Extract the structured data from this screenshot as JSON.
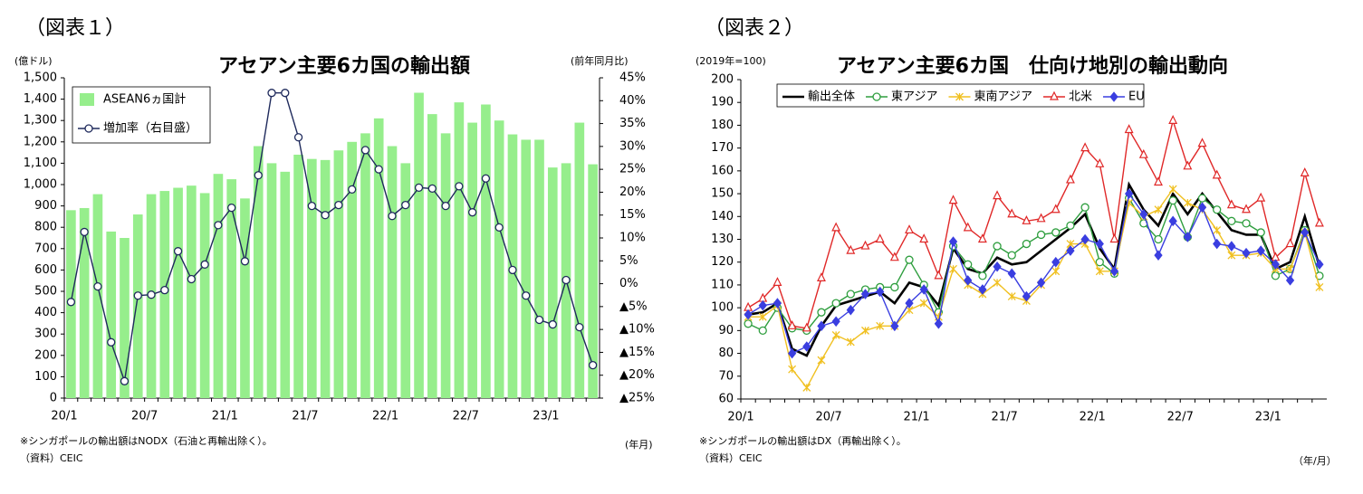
{
  "chart_data": [
    {
      "type": "bar",
      "figure_label": "（図表１）",
      "title": "アセアン主要6カ国の輸出額",
      "y_label": "(億ドル)",
      "y2_label": "(前年同月比)",
      "x_label": "(年月)",
      "note": "※シンガポールの輸出額はNODX（石油と再輸出除く）。",
      "source": "（資料）CEIC",
      "categories": [
        "20/1",
        null,
        null,
        null,
        null,
        null,
        "20/7",
        null,
        null,
        null,
        null,
        null,
        "21/1",
        null,
        null,
        null,
        null,
        null,
        "21/7",
        null,
        null,
        null,
        null,
        null,
        "22/1",
        null,
        null,
        null,
        null,
        null,
        "22/7",
        null,
        null,
        null,
        null,
        null,
        "23/1",
        null,
        null,
        null
      ],
      "series": [
        {
          "name": "ASEAN6ヵ国計",
          "type": "bar",
          "color": "#96ee8c",
          "values": [
            880,
            890,
            955,
            780,
            750,
            860,
            955,
            970,
            985,
            995,
            960,
            1050,
            1025,
            935,
            1180,
            1100,
            1060,
            1140,
            1120,
            1115,
            1160,
            1200,
            1240,
            1310,
            1180,
            1100,
            1430,
            1330,
            1240,
            1385,
            1290,
            1375,
            1300,
            1235,
            1210,
            1210,
            1080,
            1100,
            1290,
            1095
          ]
        },
        {
          "name": "増加率（右目盛）",
          "type": "line",
          "axis": "y2",
          "color": "#1f2a5c",
          "marker": "circle",
          "values": [
            -4,
            11.3,
            -0.6,
            -12.8,
            -21.3,
            -2.6,
            -2.4,
            -1.4,
            7.1,
            1,
            4.2,
            12.8,
            16.6,
            4.9,
            23.7,
            41.7,
            41.7,
            32,
            17,
            15,
            17.2,
            20.6,
            29.2,
            25,
            14.8,
            17.2,
            21,
            20.8,
            17,
            21.3,
            15.6,
            23,
            12.3,
            3,
            -2.6,
            -7.9,
            -8.9,
            0.8,
            -9.5,
            -17.8
          ]
        }
      ],
      "ylim": [
        0,
        1500
      ],
      "yticks": [
        0,
        100,
        200,
        300,
        400,
        500,
        600,
        700,
        800,
        900,
        {
          "value": 1000,
          "label": "1,000"
        },
        {
          "value": 1100,
          "label": "1,100"
        },
        {
          "value": 1200,
          "label": "1,200"
        },
        {
          "value": 1300,
          "label": "1,300"
        },
        {
          "value": 1400,
          "label": "1,400"
        },
        {
          "value": 1500,
          "label": "1,500"
        }
      ],
      "y2lim": [
        -25,
        45
      ],
      "y2ticks": [
        {
          "value": -25,
          "label": "▲25%"
        },
        {
          "value": -20,
          "label": "▲20%"
        },
        {
          "value": -15,
          "label": "▲15%"
        },
        {
          "value": -10,
          "label": "▲10%"
        },
        {
          "value": -5,
          "label": "▲5%"
        },
        {
          "value": 0,
          "label": "0%"
        },
        {
          "value": 5,
          "label": "5%"
        },
        {
          "value": 10,
          "label": "10%"
        },
        {
          "value": 15,
          "label": "15%"
        },
        {
          "value": 20,
          "label": "20%"
        },
        {
          "value": 25,
          "label": "25%"
        },
        {
          "value": 30,
          "label": "30%"
        },
        {
          "value": 35,
          "label": "35%"
        },
        {
          "value": 40,
          "label": "40%"
        },
        {
          "value": 45,
          "label": "45%"
        }
      ],
      "grid": false,
      "legend": "vertical"
    },
    {
      "type": "line",
      "figure_label": "（図表２）",
      "title": "アセアン主要6カ国　仕向け地別の輸出動向",
      "y_label": "(2019年=100)",
      "x_label": "（年/月）",
      "note": "※シンガポールの輸出額はDX（再輸出除く）。",
      "source": "（資料）CEIC",
      "categories": [
        "20/1",
        null,
        null,
        null,
        null,
        null,
        "20/7",
        null,
        null,
        null,
        null,
        null,
        "21/1",
        null,
        null,
        null,
        null,
        null,
        "21/7",
        null,
        null,
        null,
        null,
        null,
        "22/1",
        null,
        null,
        null,
        null,
        null,
        "22/7",
        null,
        null,
        null,
        null,
        null,
        "23/1",
        null,
        null,
        null
      ],
      "series": [
        {
          "name": "輸出全体",
          "color": "#000000",
          "marker": "none",
          "values": [
            97,
            98,
            102,
            82,
            79,
            92,
            101,
            103,
            105,
            107,
            102,
            111,
            109,
            101,
            126,
            117,
            115,
            122,
            119,
            120,
            125,
            130,
            135,
            141,
            126,
            117,
            154,
            143,
            136,
            150,
            141,
            150,
            142,
            134,
            132,
            132,
            117,
            120,
            140,
            118
          ]
        },
        {
          "name": "東アジア",
          "color": "#2e9e3e",
          "marker": "circle",
          "values": [
            93,
            90,
            100,
            91,
            90,
            98,
            102,
            106,
            108,
            109,
            109,
            121,
            110,
            98,
            127,
            119,
            114,
            127,
            123,
            128,
            132,
            133,
            136,
            144,
            120,
            115,
            148,
            137,
            130,
            147,
            131,
            148,
            143,
            138,
            137,
            133,
            114,
            117,
            134,
            114
          ]
        },
        {
          "name": "東南アジア",
          "color": "#f0c020",
          "marker": "cross",
          "values": [
            96,
            96,
            101,
            73,
            65,
            77,
            88,
            85,
            90,
            92,
            92,
            99,
            102,
            96,
            117,
            110,
            106,
            111,
            105,
            103,
            110,
            116,
            128,
            128,
            116,
            116,
            146,
            140,
            143,
            152,
            146,
            143,
            134,
            123,
            123,
            124,
            117,
            117,
            133,
            109
          ]
        },
        {
          "name": "北米",
          "color": "#e02828",
          "marker": "triangle",
          "values": [
            100,
            104,
            111,
            92,
            91,
            113,
            135,
            125,
            127,
            130,
            122,
            134,
            130,
            114,
            147,
            135,
            130,
            149,
            141,
            138,
            139,
            143,
            156,
            170,
            163,
            130,
            178,
            167,
            155,
            182,
            162,
            172,
            158,
            145,
            143,
            148,
            122,
            128,
            159,
            137
          ]
        },
        {
          "name": "EU",
          "color": "#3a3ee0",
          "marker": "diamond",
          "values": [
            97,
            101,
            102,
            80,
            83,
            92,
            94,
            99,
            106,
            107,
            92,
            102,
            108,
            93,
            129,
            112,
            108,
            118,
            115,
            105,
            111,
            120,
            125,
            130,
            128,
            116,
            150,
            141,
            123,
            138,
            131,
            144,
            128,
            127,
            124,
            125,
            119,
            112,
            133,
            119
          ]
        }
      ],
      "ylim": [
        60,
        200
      ],
      "yticks": [
        60,
        70,
        80,
        90,
        100,
        110,
        120,
        130,
        140,
        150,
        160,
        170,
        180,
        190,
        200
      ],
      "grid": false,
      "legend": "horizontal"
    }
  ]
}
